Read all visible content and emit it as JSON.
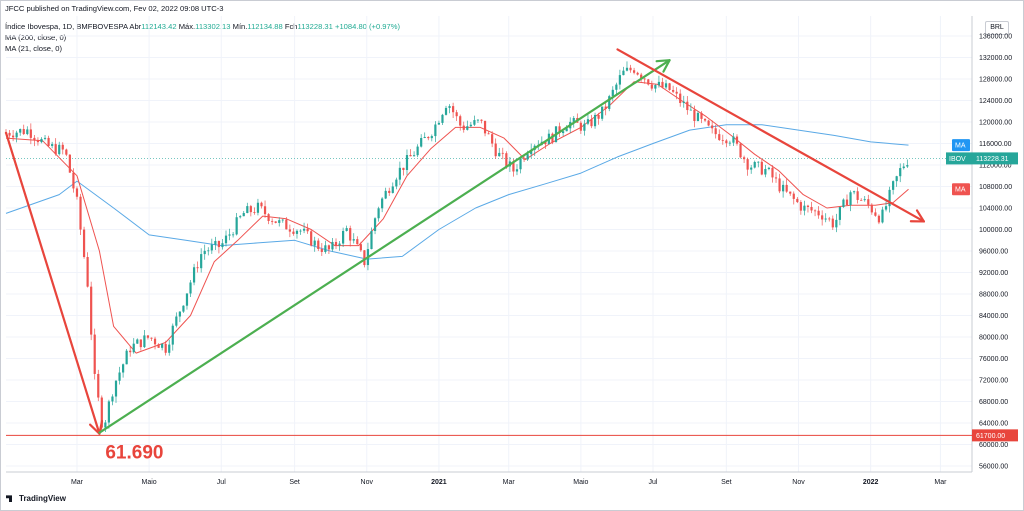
{
  "header": {
    "published": "JFCC published on TradingView.com, Fev 02, 2022 09:08 UTC-3",
    "symbol": "Índice Ibovespa, 1D, BMFBOVESPA",
    "ohlc": [
      {
        "label": "Abr",
        "value": "112143.42"
      },
      {
        "label": "Máx.",
        "value": "113302.13"
      },
      {
        "label": "Mín.",
        "value": "112134.88"
      },
      {
        "label": "Fch",
        "value": "113228.31"
      }
    ],
    "change": "+1084.80 (+0.97%)",
    "ma1": "MA (200, close, 0)",
    "ma2": "MA (21, close, 0)"
  },
  "currency": "BRL",
  "footer": {
    "brand": "TradingView"
  },
  "annotation": {
    "low_label": "61.690"
  },
  "badges": {
    "ma_blue": {
      "text": "MA",
      "color": "#2196f3"
    },
    "ibov": {
      "text": "IBOV",
      "value": "113228.31",
      "color": "#26a69a"
    },
    "ma_red": {
      "text": "MA",
      "color": "#ef5350"
    },
    "level": {
      "value": "61700.00",
      "color": "#e8453c"
    }
  },
  "chart_data": {
    "type": "line",
    "title": "Índice Ibovespa, 1D, BMFBOVESPA",
    "ylim": [
      56000,
      136000
    ],
    "y_ticks": [
      56000,
      60000,
      64000,
      68000,
      72000,
      76000,
      80000,
      84000,
      88000,
      92000,
      96000,
      100000,
      104000,
      108000,
      112000,
      116000,
      120000,
      124000,
      128000,
      132000,
      136000
    ],
    "y_tick_labels": [
      "56000.00",
      "60000.00",
      "64000.00",
      "68000.00",
      "72000.00",
      "76000.00",
      "80000.00",
      "84000.00",
      "88000.00",
      "92000.00",
      "96000.00",
      "100000.00",
      "104000.00",
      "108000.00",
      "112000.00",
      "116000.00",
      "120000.00",
      "124000.00",
      "128000.00",
      "132000.00",
      "136000.00"
    ],
    "x_ticks": [
      {
        "label": "Mar",
        "date": "2020-03-01"
      },
      {
        "label": "Maio",
        "date": "2020-05-01"
      },
      {
        "label": "Jul",
        "date": "2020-07-01"
      },
      {
        "label": "Set",
        "date": "2020-09-01"
      },
      {
        "label": "Nov",
        "date": "2020-11-01"
      },
      {
        "label": "2021",
        "date": "2021-01-01",
        "bold": true
      },
      {
        "label": "Mar",
        "date": "2021-03-01"
      },
      {
        "label": "Maio",
        "date": "2021-05-01"
      },
      {
        "label": "Jul",
        "date": "2021-07-01"
      },
      {
        "label": "Set",
        "date": "2021-09-01"
      },
      {
        "label": "Nov",
        "date": "2021-11-01"
      },
      {
        "label": "2022",
        "date": "2022-01-01",
        "bold": true
      },
      {
        "label": "Mar",
        "date": "2022-03-01"
      }
    ],
    "price_series": {
      "name": "IBOV",
      "color_up": "#26a69a",
      "color_down": "#ef5350",
      "points": [
        [
          "2020-01-01",
          118000
        ],
        [
          "2020-01-20",
          118500
        ],
        [
          "2020-02-05",
          115500
        ],
        [
          "2020-02-20",
          114500
        ],
        [
          "2020-03-01",
          105000
        ],
        [
          "2020-03-10",
          90000
        ],
        [
          "2020-03-16",
          72000
        ],
        [
          "2020-03-23",
          63000
        ],
        [
          "2020-04-01",
          71000
        ],
        [
          "2020-04-15",
          78000
        ],
        [
          "2020-05-01",
          80000
        ],
        [
          "2020-05-15",
          78000
        ],
        [
          "2020-06-01",
          88000
        ],
        [
          "2020-06-15",
          96000
        ],
        [
          "2020-07-01",
          97000
        ],
        [
          "2020-07-20",
          103000
        ],
        [
          "2020-08-01",
          104000
        ],
        [
          "2020-08-20",
          101000
        ],
        [
          "2020-09-05",
          100000
        ],
        [
          "2020-09-20",
          97000
        ],
        [
          "2020-10-01",
          96000
        ],
        [
          "2020-10-15",
          100000
        ],
        [
          "2020-10-30",
          94000
        ],
        [
          "2020-11-10",
          104000
        ],
        [
          "2020-11-25",
          110000
        ],
        [
          "2020-12-10",
          114000
        ],
        [
          "2020-12-28",
          119000
        ],
        [
          "2021-01-08",
          124000
        ],
        [
          "2021-01-20",
          119000
        ],
        [
          "2021-02-05",
          120000
        ],
        [
          "2021-02-20",
          114000
        ],
        [
          "2021-03-05",
          111000
        ],
        [
          "2021-03-20",
          116000
        ],
        [
          "2021-04-05",
          117000
        ],
        [
          "2021-04-20",
          120000
        ],
        [
          "2021-05-05",
          119000
        ],
        [
          "2021-05-20",
          122000
        ],
        [
          "2021-06-05",
          129000
        ],
        [
          "2021-06-15",
          130000
        ],
        [
          "2021-07-01",
          127000
        ],
        [
          "2021-07-15",
          126000
        ],
        [
          "2021-08-01",
          122000
        ],
        [
          "2021-08-20",
          118000
        ],
        [
          "2021-09-05",
          117000
        ],
        [
          "2021-09-20",
          112000
        ],
        [
          "2021-10-05",
          111000
        ],
        [
          "2021-10-20",
          107000
        ],
        [
          "2021-11-05",
          104000
        ],
        [
          "2021-11-20",
          103000
        ],
        [
          "2021-12-01",
          101000
        ],
        [
          "2021-12-15",
          107000
        ],
        [
          "2021-12-30",
          104500
        ],
        [
          "2022-01-10",
          102000
        ],
        [
          "2022-01-20",
          108000
        ],
        [
          "2022-01-27",
          111500
        ],
        [
          "2022-02-02",
          113228
        ]
      ]
    },
    "ma200": {
      "name": "MA (200, close, 0)",
      "color": "#5aa9e6",
      "points": [
        [
          "2020-01-01",
          103000
        ],
        [
          "2020-02-15",
          106500
        ],
        [
          "2020-03-01",
          109000
        ],
        [
          "2020-04-01",
          104000
        ],
        [
          "2020-05-01",
          99000
        ],
        [
          "2020-06-01",
          98000
        ],
        [
          "2020-07-01",
          97000
        ],
        [
          "2020-08-01",
          97500
        ],
        [
          "2020-09-01",
          98000
        ],
        [
          "2020-10-01",
          96000
        ],
        [
          "2020-11-01",
          94500
        ],
        [
          "2020-12-01",
          95000
        ],
        [
          "2021-01-01",
          100000
        ],
        [
          "2021-02-01",
          104000
        ],
        [
          "2021-03-01",
          106500
        ],
        [
          "2021-04-01",
          108500
        ],
        [
          "2021-05-01",
          110500
        ],
        [
          "2021-06-01",
          113500
        ],
        [
          "2021-07-01",
          116000
        ],
        [
          "2021-08-01",
          118500
        ],
        [
          "2021-09-01",
          119500
        ],
        [
          "2021-10-01",
          119500
        ],
        [
          "2021-11-01",
          118500
        ],
        [
          "2021-12-01",
          117500
        ],
        [
          "2022-01-01",
          116300
        ],
        [
          "2022-02-02",
          115700
        ]
      ]
    },
    "ma21": {
      "name": "MA (21, close, 0)",
      "color": "#ef5350",
      "points": [
        [
          "2020-01-01",
          117000
        ],
        [
          "2020-02-01",
          116500
        ],
        [
          "2020-03-01",
          110000
        ],
        [
          "2020-03-20",
          96000
        ],
        [
          "2020-04-01",
          82000
        ],
        [
          "2020-04-20",
          77000
        ],
        [
          "2020-05-15",
          79000
        ],
        [
          "2020-06-05",
          84000
        ],
        [
          "2020-06-25",
          94000
        ],
        [
          "2020-07-15",
          98000
        ],
        [
          "2020-08-05",
          102500
        ],
        [
          "2020-08-25",
          102000
        ],
        [
          "2020-09-15",
          100000
        ],
        [
          "2020-10-05",
          97000
        ],
        [
          "2020-10-25",
          97000
        ],
        [
          "2020-11-15",
          102000
        ],
        [
          "2020-12-05",
          110000
        ],
        [
          "2020-12-25",
          115000
        ],
        [
          "2021-01-15",
          119000
        ],
        [
          "2021-02-05",
          119000
        ],
        [
          "2021-02-25",
          117000
        ],
        [
          "2021-03-15",
          113000
        ],
        [
          "2021-04-05",
          116000
        ],
        [
          "2021-05-01",
          119000
        ],
        [
          "2021-05-25",
          123000
        ],
        [
          "2021-06-15",
          127500
        ],
        [
          "2021-07-05",
          127000
        ],
        [
          "2021-07-25",
          124000
        ],
        [
          "2021-08-15",
          121000
        ],
        [
          "2021-09-05",
          117500
        ],
        [
          "2021-09-25",
          114000
        ],
        [
          "2021-10-15",
          111000
        ],
        [
          "2021-11-05",
          106500
        ],
        [
          "2021-11-25",
          104000
        ],
        [
          "2021-12-15",
          104500
        ],
        [
          "2022-01-05",
          104500
        ],
        [
          "2022-01-20",
          105000
        ],
        [
          "2022-02-02",
          107500
        ]
      ]
    },
    "trendlines": [
      {
        "name": "decline-arrow",
        "color": "#e8453c",
        "from": [
          "2020-01-01",
          118000
        ],
        "to": [
          "2020-03-20",
          62000
        ],
        "arrow": true
      },
      {
        "name": "uptrend-arrow",
        "color": "#4caf50",
        "from": [
          "2020-03-20",
          62200
        ],
        "to": [
          "2021-07-15",
          131500
        ],
        "arrow": true
      },
      {
        "name": "downtrend-arrow",
        "color": "#e8453c",
        "from": [
          "2021-06-01",
          133500
        ],
        "to": [
          "2022-02-15",
          101500
        ],
        "arrow": true
      }
    ],
    "level_line": {
      "value": 61700,
      "color": "#e8453c"
    },
    "last_value_line": {
      "value": 113228.31,
      "color": "#26a69a"
    }
  }
}
